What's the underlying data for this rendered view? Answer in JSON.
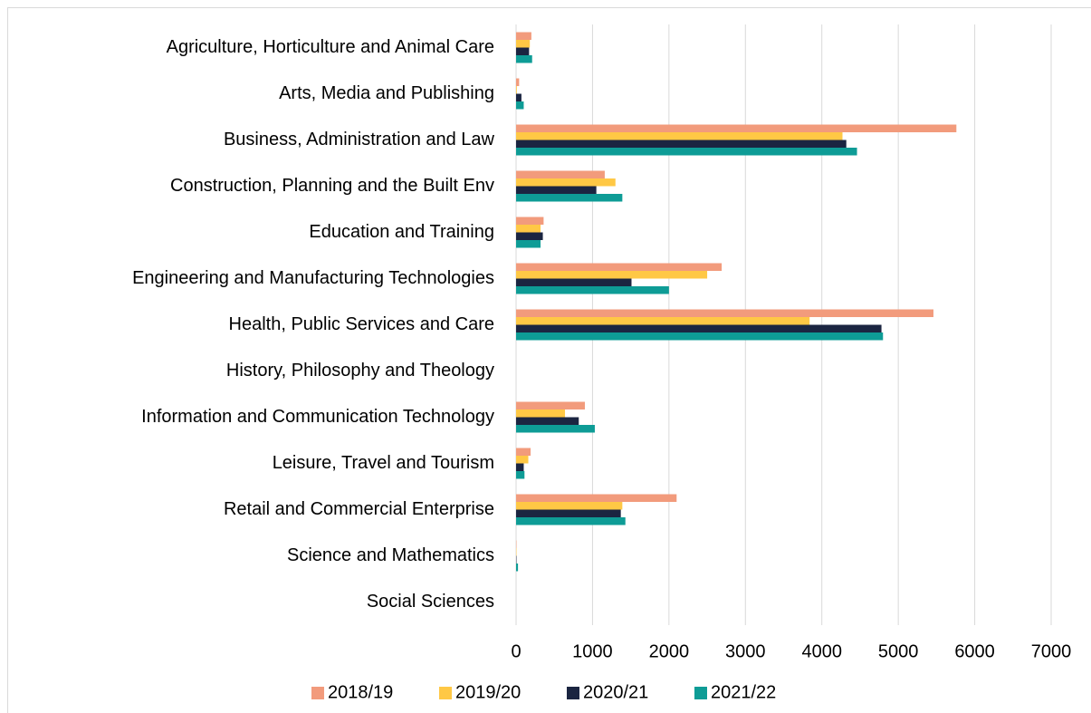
{
  "chart_data": {
    "type": "bar",
    "orientation": "horizontal",
    "categories": [
      "Agriculture, Horticulture and Animal Care",
      "Arts, Media and Publishing",
      "Business, Administration and Law",
      "Construction, Planning and the Built Env",
      "Education and Training",
      "Engineering and Manufacturing Technologies",
      "Health, Public Services and Care",
      "History, Philosophy and Theology",
      "Information and Communication Technology",
      "Leisure, Travel and Tourism",
      "Retail and Commercial Enterprise",
      "Science and Mathematics",
      "Social Sciences"
    ],
    "series": [
      {
        "name": "2018/19",
        "color": "#f29b7c",
        "values": [
          200,
          40,
          5760,
          1160,
          360,
          2690,
          5460,
          0,
          900,
          190,
          2100,
          5,
          0
        ]
      },
      {
        "name": "2019/20",
        "color": "#ffc845",
        "values": [
          180,
          10,
          4270,
          1300,
          320,
          2500,
          3840,
          0,
          640,
          160,
          1390,
          5,
          0
        ]
      },
      {
        "name": "2020/21",
        "color": "#1b2541",
        "values": [
          170,
          70,
          4320,
          1050,
          350,
          1510,
          4780,
          0,
          820,
          100,
          1370,
          5,
          0
        ]
      },
      {
        "name": "2021/22",
        "color": "#0e9c96",
        "values": [
          210,
          100,
          4460,
          1390,
          320,
          2000,
          4800,
          0,
          1030,
          110,
          1430,
          25,
          0
        ]
      }
    ],
    "xlim": [
      0,
      7000
    ],
    "xticks": [
      0,
      1000,
      2000,
      3000,
      4000,
      5000,
      6000,
      7000
    ],
    "grid": true,
    "legend": "bottom"
  }
}
